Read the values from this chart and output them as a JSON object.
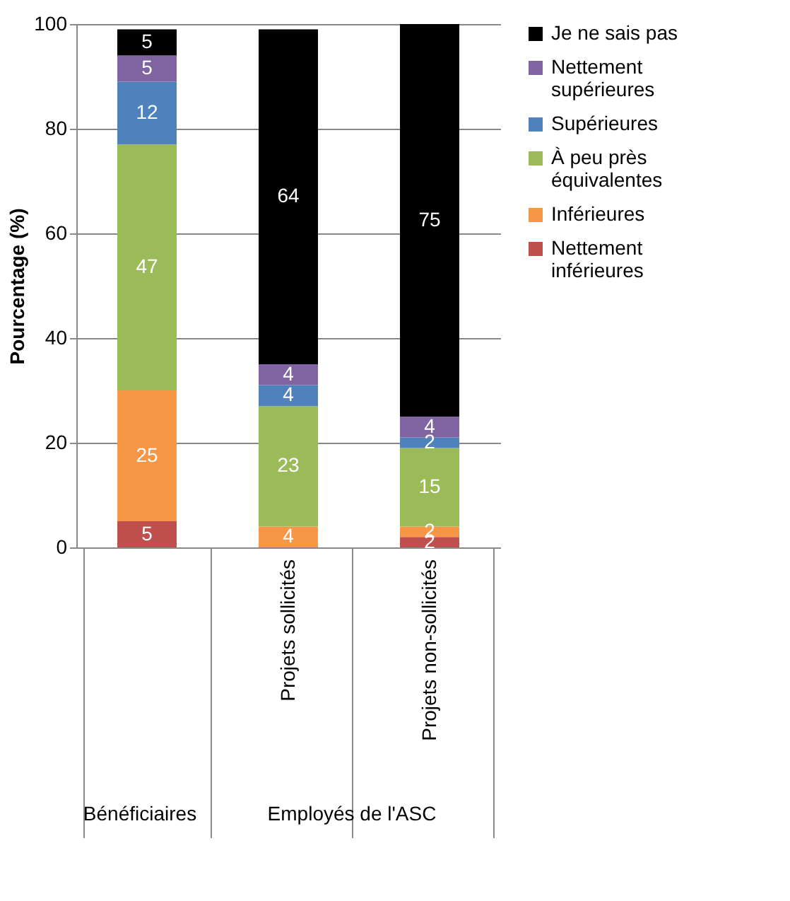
{
  "chart_data": {
    "type": "bar",
    "stacked": true,
    "ylabel": "Pourcentage (%)",
    "categories": [
      null,
      "Projets sollicités",
      "Projets non-sollicités"
    ],
    "series": [
      {
        "name": "Nettement inférieures",
        "color": "#c0504d",
        "values": [
          5,
          0,
          2
        ],
        "value_labels": [
          "5",
          null,
          "2"
        ]
      },
      {
        "name": "Inférieures",
        "color": "#f79646",
        "values": [
          25,
          4,
          2
        ],
        "value_labels": [
          "25",
          "4",
          "2"
        ]
      },
      {
        "name": "À peu près équivalentes",
        "color": "#9bbb59",
        "values": [
          47,
          23,
          15
        ],
        "value_labels": [
          "47",
          "23",
          "15"
        ]
      },
      {
        "name": "Supérieures",
        "color": "#4f81bd",
        "values": [
          12,
          4,
          2
        ],
        "value_labels": [
          "12",
          "4",
          "2"
        ]
      },
      {
        "name": "Nettement supérieures",
        "color": "#8064a2",
        "values": [
          5,
          4,
          4
        ],
        "value_labels": [
          "5",
          "4",
          "4"
        ]
      },
      {
        "name": "Je ne sais pas",
        "color": "#000000",
        "values": [
          5,
          64,
          75
        ],
        "value_labels": [
          "5",
          "64",
          "75"
        ]
      }
    ],
    "ylim": [
      0,
      100
    ],
    "yticks": [
      0,
      20,
      40,
      60,
      80,
      100
    ],
    "grid": "y",
    "legend": "right",
    "annotations": [
      "Bénéficiaires",
      "Employés de l'ASC"
    ]
  }
}
